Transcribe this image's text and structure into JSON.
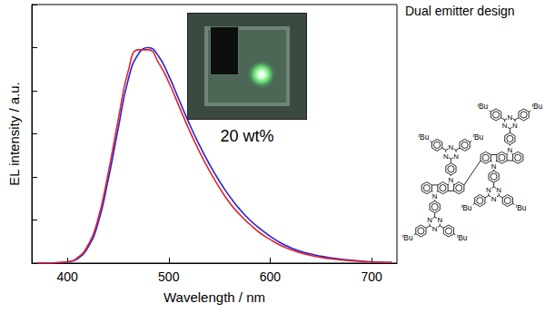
{
  "chart_data": {
    "type": "line",
    "xlabel": "Wavelength / nm",
    "ylabel": "EL intensity / a.u.",
    "x": [
      370,
      380,
      390,
      400,
      410,
      420,
      430,
      440,
      450,
      460,
      470,
      480,
      490,
      500,
      510,
      520,
      530,
      540,
      550,
      560,
      570,
      580,
      590,
      600,
      610,
      620,
      630,
      640,
      650,
      660,
      670,
      680,
      690,
      700,
      710,
      720
    ],
    "series": [
      {
        "color": "#2222dd",
        "values": [
          0,
          0,
          0.002,
          0.005,
          0.02,
          0.07,
          0.18,
          0.38,
          0.62,
          0.85,
          0.97,
          1.0,
          0.96,
          0.87,
          0.76,
          0.65,
          0.55,
          0.46,
          0.38,
          0.31,
          0.25,
          0.2,
          0.16,
          0.125,
          0.095,
          0.072,
          0.055,
          0.042,
          0.032,
          0.024,
          0.018,
          0.013,
          0.009,
          0.006,
          0.004,
          0.003
        ]
      },
      {
        "color": "#e3222b",
        "values": [
          0,
          0,
          0.002,
          0.006,
          0.025,
          0.08,
          0.2,
          0.41,
          0.66,
          0.89,
          0.99,
          0.99,
          0.93,
          0.84,
          0.73,
          0.62,
          0.52,
          0.43,
          0.35,
          0.28,
          0.225,
          0.18,
          0.14,
          0.11,
          0.083,
          0.063,
          0.048,
          0.036,
          0.027,
          0.02,
          0.015,
          0.011,
          0.008,
          0.005,
          0.004,
          0.003
        ]
      }
    ],
    "xlim": [
      365,
      725
    ],
    "ylim": [
      0,
      1.2
    ],
    "xticks": [
      400,
      500,
      600,
      700
    ],
    "yticks": [
      0,
      0.2,
      0.4,
      0.6,
      0.8,
      1.0,
      1.2
    ],
    "tick_labels": "x",
    "grid": false
  },
  "inset": {
    "caption": "20 wt%"
  },
  "structure": {
    "title": "Dual emitter design",
    "nitrogen": "N",
    "substituent": {
      "superscript": "t",
      "text": "Bu"
    }
  }
}
